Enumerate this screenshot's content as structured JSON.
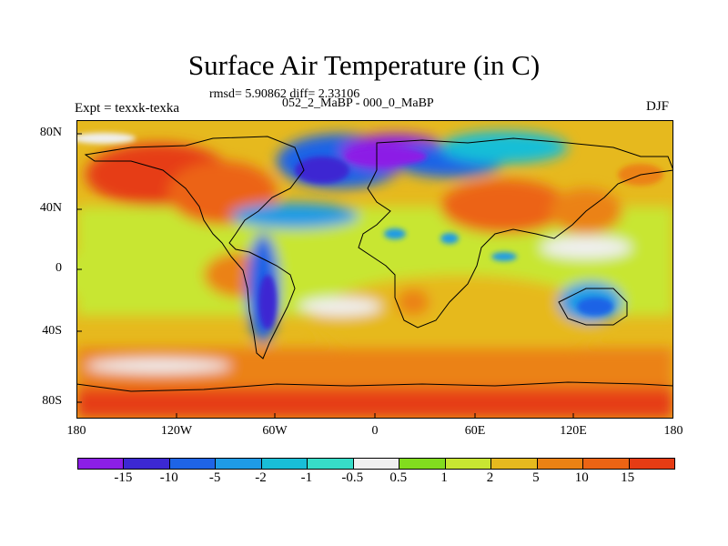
{
  "title": "Surface Air Temperature (in C)",
  "stats": "rmsd= 5.90862 diff= 2.33106",
  "subtitle": "052_2_MaBP - 000_0_MaBP",
  "experiment": "Expt = texxk-texka",
  "season": "DJF",
  "lat_ticks": [
    "80N",
    "40N",
    "0",
    "40S",
    "80S"
  ],
  "lon_ticks": [
    "180",
    "120W",
    "60W",
    "0",
    "60E",
    "120E",
    "180"
  ],
  "colorbar": {
    "labels": [
      "-15",
      "-10",
      "-5",
      "-2",
      "-1",
      "-0.5",
      "0.5",
      "1",
      "2",
      "5",
      "10",
      "15"
    ],
    "colors": [
      "#8c1ee6",
      "#3c28d2",
      "#1e64e6",
      "#1e9be6",
      "#19bed7",
      "#37dcc8",
      "#f0f0f0",
      "#82dc1e",
      "#c8e632",
      "#e6b91e",
      "#eb8214",
      "#ec6414",
      "#e63c14"
    ]
  }
}
